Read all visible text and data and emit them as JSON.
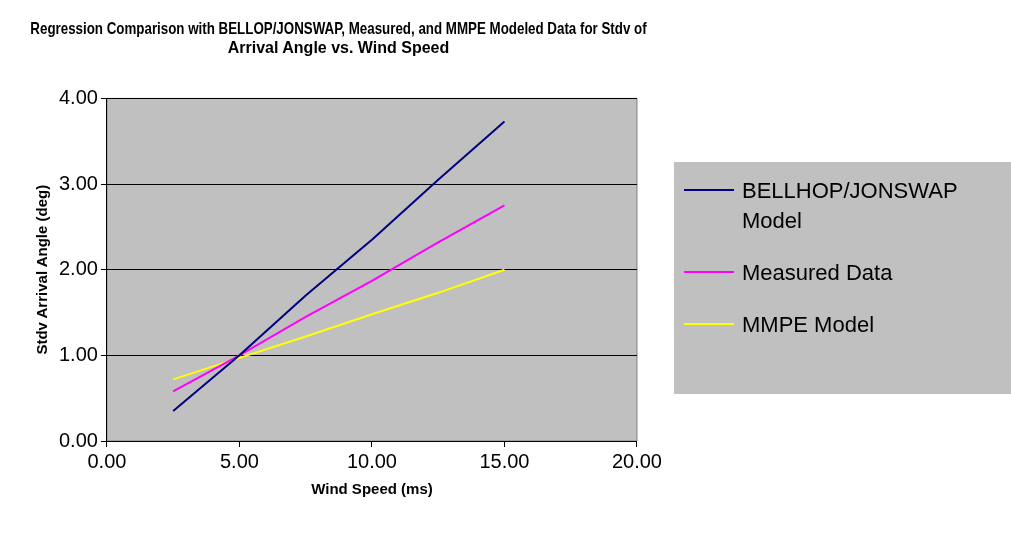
{
  "chart_data": {
    "type": "line",
    "title": "Regression Comparison with BELLOP/JONSWAP, Measured, and MMPE Modeled Data for Stdv of Arrival Angle vs. Wind Speed",
    "xlabel": "Wind Speed (ms)",
    "ylabel": "Stdv Arrival Angle (deg)",
    "x": [
      2.5,
      5,
      7.5,
      10,
      12.5,
      15
    ],
    "series": [
      {
        "name": "BELLHOP/JONSWAP Model",
        "color": "#000080",
        "values": [
          0.35,
          1.0,
          1.7,
          2.35,
          3.05,
          3.73
        ]
      },
      {
        "name": "Measured Data",
        "color": "#ff00ff",
        "values": [
          0.58,
          1.0,
          1.45,
          1.87,
          2.32,
          2.75
        ]
      },
      {
        "name": "MMPE Model",
        "color": "#ffff00",
        "values": [
          0.72,
          0.97,
          1.22,
          1.48,
          1.73,
          2.0
        ]
      }
    ],
    "xlim": [
      0,
      20
    ],
    "xticks": [
      {
        "value": 0,
        "label": "0.00"
      },
      {
        "value": 5,
        "label": "5.00"
      },
      {
        "value": 10,
        "label": "10.00"
      },
      {
        "value": 15,
        "label": "15.00"
      },
      {
        "value": 20,
        "label": "20.00"
      }
    ],
    "ylim": [
      0,
      4
    ],
    "yticks": [
      {
        "value": 0,
        "label": "0.00"
      },
      {
        "value": 1,
        "label": "1.00"
      },
      {
        "value": 2,
        "label": "2.00"
      },
      {
        "value": 3,
        "label": "3.00"
      },
      {
        "value": 4,
        "label": "4.00"
      }
    ],
    "grid": "y",
    "legend": "right",
    "marker": "none",
    "line_style": "solid"
  }
}
